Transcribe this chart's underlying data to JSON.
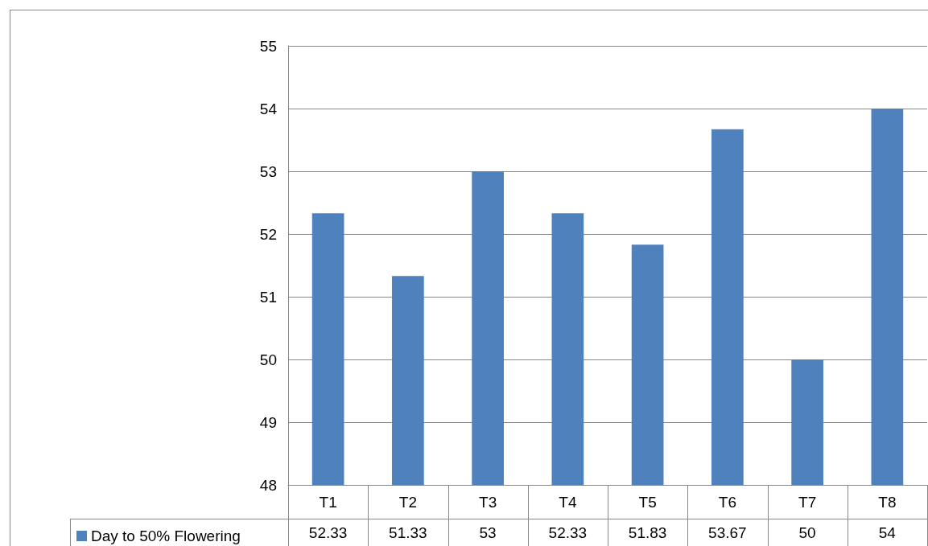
{
  "chart_data": {
    "type": "bar",
    "categories": [
      "T1",
      "T2",
      "T3",
      "T4",
      "T5",
      "T6",
      "T7",
      "T8"
    ],
    "series": [
      {
        "name": "Day to 50% Flowering",
        "color": "#4f81bd",
        "values": [
          52.33,
          51.33,
          53,
          52.33,
          51.83,
          53.67,
          50,
          54
        ]
      }
    ],
    "ylim": [
      48,
      55
    ],
    "yticks": [
      48,
      49,
      50,
      51,
      52,
      53,
      54,
      55
    ],
    "grid": "y",
    "legend": "bottom",
    "data_labels": true
  }
}
